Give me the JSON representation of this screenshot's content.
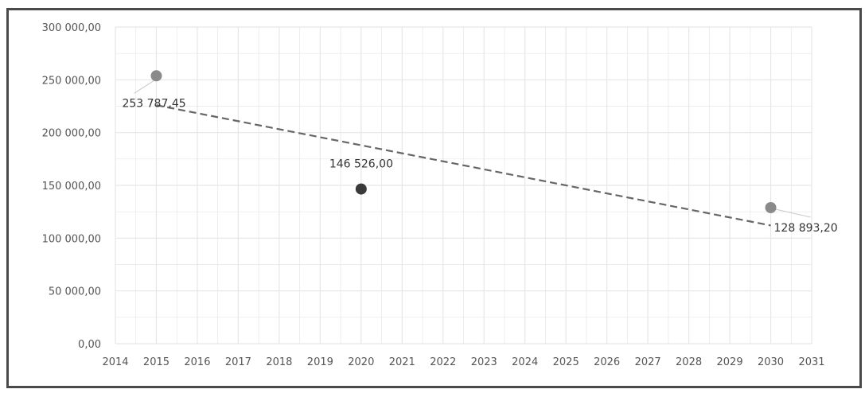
{
  "chart_data": {
    "type": "scatter",
    "title": "",
    "xlabel": "",
    "ylabel": "",
    "xlim": [
      2014,
      2031
    ],
    "ylim": [
      0,
      300000
    ],
    "x_ticks": [
      "2014",
      "2015",
      "2016",
      "2017",
      "2018",
      "2019",
      "2020",
      "2021",
      "2022",
      "2023",
      "2024",
      "2025",
      "2026",
      "2027",
      "2028",
      "2029",
      "2030",
      "2031"
    ],
    "y_ticks": [
      "0,00",
      "50 000,00",
      "100 000,00",
      "150 000,00",
      "200 000,00",
      "250 000,00",
      "300 000,00"
    ],
    "grid": true,
    "legend": "none",
    "points": [
      {
        "x": 2015,
        "y": 253787.45,
        "label": "253 787,45",
        "color": "#8a8a8a"
      },
      {
        "x": 2020,
        "y": 146526.0,
        "label": "146 526,00",
        "color": "#3a3a3a"
      },
      {
        "x": 2030,
        "y": 128893.2,
        "label": "128 893,20",
        "color": "#8a8a8a"
      }
    ],
    "trendline": {
      "type": "linear",
      "style": "dashed",
      "color": "#666666",
      "x": [
        2015,
        2030
      ],
      "y": [
        226000,
        112000
      ]
    }
  },
  "colors": {
    "grid": "#e6e6e6",
    "frame": "#4a4a4a",
    "leader": "#c8c8c8"
  }
}
